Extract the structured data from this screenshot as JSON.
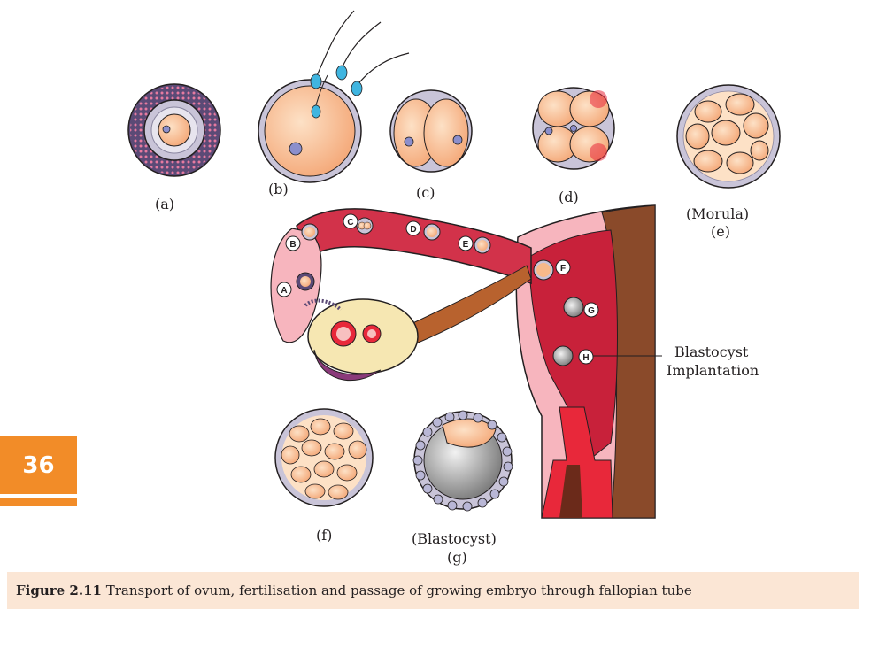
{
  "figure": {
    "page_number": "36",
    "caption_label": "Figure 2.11",
    "caption_text": " Transport of ovum, fertilisation and passage of growing embryo through fallopian tube",
    "labels": {
      "a": "(a)",
      "b": "(b)",
      "c": "(c)",
      "d": "(d)",
      "e_title": "(Morula)",
      "e": "(e)",
      "f": "(f)",
      "g_title": "(Blastocyst)",
      "g": "(g)",
      "blastocyst_line1": "Blastocyst",
      "blastocyst_line2": "Implantation"
    },
    "stage_markers": [
      "A",
      "B",
      "C",
      "D",
      "E",
      "F",
      "G",
      "H"
    ],
    "colors": {
      "accent": "#f28c28",
      "caption_bg": "#fbe6d5",
      "tissue": "#d2324a",
      "cell": "#f7b98a",
      "zona": "#c9c4d8"
    }
  }
}
